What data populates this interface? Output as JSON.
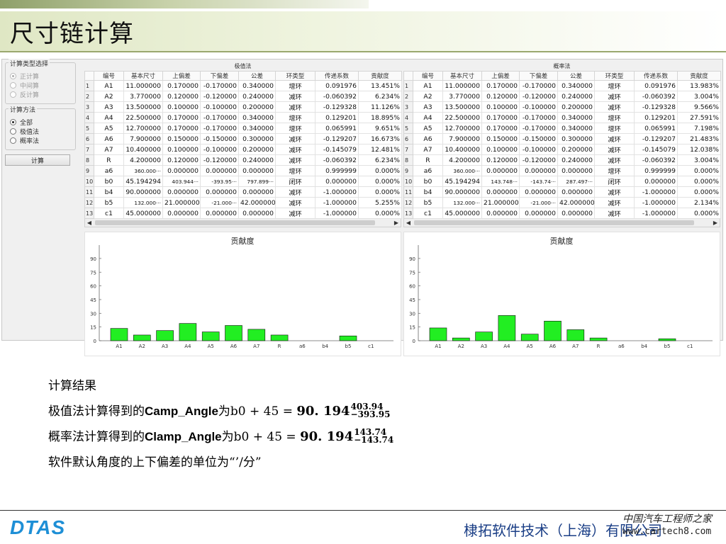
{
  "slide": {
    "title": "尺寸链计算",
    "company": "棣拓软件技术（上海）有限公司",
    "logo": "DTAS",
    "watermark_line1": "中国汽车工程师之家",
    "watermark_line2": "www.cartech8.com"
  },
  "left_panel": {
    "calc_type_group": "计算类型选择",
    "calc_types": [
      "正计算",
      "中间算",
      "反计算"
    ],
    "calc_method_group": "计算方法",
    "calc_methods": [
      "全部",
      "极值法",
      "概率法"
    ],
    "calc_button": "计算"
  },
  "columns": [
    "编号",
    "基本尺寸",
    "上偏差",
    "下偏差",
    "公差",
    "环类型",
    "传递系数",
    "贡献度"
  ],
  "extreme": {
    "title": "极值法",
    "chart_title": "贡献度",
    "rows": [
      [
        "1",
        "A1",
        "11.000000",
        "0.170000",
        "-0.170000",
        "0.340000",
        "增环",
        "0.091976",
        "13.451%"
      ],
      [
        "2",
        "A2",
        "3.770000",
        "0.120000",
        "-0.120000",
        "0.240000",
        "减环",
        "-0.060392",
        "6.234%"
      ],
      [
        "3",
        "A3",
        "13.500000",
        "0.100000",
        "-0.100000",
        "0.200000",
        "减环",
        "-0.129328",
        "11.126%"
      ],
      [
        "4",
        "A4",
        "22.500000",
        "0.170000",
        "-0.170000",
        "0.340000",
        "增环",
        "0.129201",
        "18.895%"
      ],
      [
        "5",
        "A5",
        "12.700000",
        "0.170000",
        "-0.170000",
        "0.340000",
        "增环",
        "0.065991",
        "9.651%"
      ],
      [
        "6",
        "A6",
        "7.900000",
        "0.150000",
        "-0.150000",
        "0.300000",
        "减环",
        "-0.129207",
        "16.673%"
      ],
      [
        "7",
        "A7",
        "10.400000",
        "0.100000",
        "-0.100000",
        "0.200000",
        "减环",
        "-0.145079",
        "12.481%"
      ],
      [
        "8",
        "R",
        "4.200000",
        "0.120000",
        "-0.120000",
        "0.240000",
        "减环",
        "-0.060392",
        "6.234%"
      ],
      [
        "9",
        "a6",
        "360.000···",
        "0.000000",
        "0.000000",
        "0.000000",
        "增环",
        "0.999999",
        "0.000%"
      ],
      [
        "10",
        "b0",
        "45.194294",
        "403.944···",
        "-393.95···",
        "797.899···",
        "闭环",
        "0.000000",
        "0.000%"
      ],
      [
        "11",
        "b4",
        "90.000000",
        "0.000000",
        "0.000000",
        "0.000000",
        "减环",
        "-1.000000",
        "0.000%"
      ],
      [
        "12",
        "b5",
        "132.000···",
        "21.000000",
        "-21.000···",
        "42.000000",
        "减环",
        "-1.000000",
        "5.255%"
      ],
      [
        "13",
        "c1",
        "45.000000",
        "0.000000",
        "0.000000",
        "0.000000",
        "减环",
        "-1.000000",
        "0.000%"
      ]
    ]
  },
  "probability": {
    "title": "概率法",
    "chart_title": "贡献度",
    "rows": [
      [
        "1",
        "A1",
        "11.000000",
        "0.170000",
        "-0.170000",
        "0.340000",
        "增环",
        "0.091976",
        "13.983%"
      ],
      [
        "2",
        "A2",
        "3.770000",
        "0.120000",
        "-0.120000",
        "0.240000",
        "减环",
        "-0.060392",
        "3.004%"
      ],
      [
        "3",
        "A3",
        "13.500000",
        "0.100000",
        "-0.100000",
        "0.200000",
        "减环",
        "-0.129328",
        "9.566%"
      ],
      [
        "4",
        "A4",
        "22.500000",
        "0.170000",
        "-0.170000",
        "0.340000",
        "增环",
        "0.129201",
        "27.591%"
      ],
      [
        "5",
        "A5",
        "12.700000",
        "0.170000",
        "-0.170000",
        "0.340000",
        "增环",
        "0.065991",
        "7.198%"
      ],
      [
        "6",
        "A6",
        "7.900000",
        "0.150000",
        "-0.150000",
        "0.300000",
        "减环",
        "-0.129207",
        "21.483%"
      ],
      [
        "7",
        "A7",
        "10.400000",
        "0.100000",
        "-0.100000",
        "0.200000",
        "减环",
        "-0.145079",
        "12.038%"
      ],
      [
        "8",
        "R",
        "4.200000",
        "0.120000",
        "-0.120000",
        "0.240000",
        "减环",
        "-0.060392",
        "3.004%"
      ],
      [
        "9",
        "a6",
        "360.000···",
        "0.000000",
        "0.000000",
        "0.000000",
        "增环",
        "0.999999",
        "0.000%"
      ],
      [
        "10",
        "b0",
        "45.194294",
        "143.748···",
        "-143.74···",
        "287.497···",
        "闭环",
        "0.000000",
        "0.000%"
      ],
      [
        "11",
        "b4",
        "90.000000",
        "0.000000",
        "0.000000",
        "0.000000",
        "减环",
        "-1.000000",
        "0.000%"
      ],
      [
        "12",
        "b5",
        "132.000···",
        "21.000000",
        "-21.000···",
        "42.000000",
        "减环",
        "-1.000000",
        "2.134%"
      ],
      [
        "13",
        "c1",
        "45.000000",
        "0.000000",
        "0.000000",
        "0.000000",
        "减环",
        "-1.000000",
        "0.000%"
      ]
    ]
  },
  "results": {
    "heading": "计算结果",
    "line1_prefix": "极值法计算得到的",
    "line1_name": "Camp_Angle",
    "line1_mid": "为",
    "line1_eq": "b0 + 45 = ",
    "line1_value": "90. 194",
    "line1_upper": "403.94",
    "line1_lower": "−393.95",
    "line2_prefix": "概率法计算得到的",
    "line2_name": "Clamp_Angle",
    "line2_mid": "为",
    "line2_eq": "b0 + 45 = ",
    "line2_value": "90. 194",
    "line2_upper": "143.74",
    "line2_lower": "−143.74",
    "line3": "软件默认角度的上下偏差的单位为“’/分”"
  },
  "chart_data": [
    {
      "type": "bar",
      "title": "贡献度",
      "categories": [
        "A1",
        "A2",
        "A3",
        "A4",
        "A5",
        "A6",
        "A7",
        "R",
        "a6",
        "b4",
        "b5",
        "c1"
      ],
      "values": [
        13.451,
        6.234,
        11.126,
        18.895,
        9.651,
        16.673,
        12.481,
        6.234,
        0,
        0,
        5.255,
        0
      ],
      "yticks": [
        0,
        15,
        30,
        45,
        60,
        75,
        90
      ],
      "ylim": [
        0,
        100
      ],
      "bar_color": "#22ee22"
    },
    {
      "type": "bar",
      "title": "贡献度",
      "categories": [
        "A1",
        "A2",
        "A3",
        "A4",
        "A5",
        "A6",
        "A7",
        "R",
        "a6",
        "b4",
        "b5",
        "c1"
      ],
      "values": [
        13.983,
        3.004,
        9.566,
        27.591,
        7.198,
        21.483,
        12.038,
        3.004,
        0,
        0,
        2.134,
        0
      ],
      "yticks": [
        0,
        15,
        30,
        45,
        60,
        75,
        90
      ],
      "ylim": [
        0,
        100
      ],
      "bar_color": "#22ee22"
    }
  ]
}
